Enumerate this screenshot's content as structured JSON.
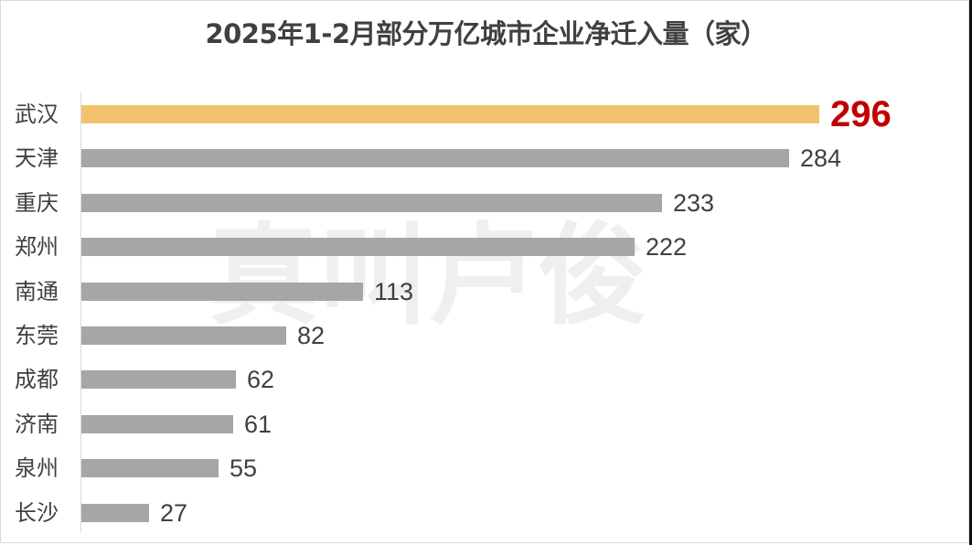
{
  "chart_data": {
    "type": "bar",
    "orientation": "horizontal",
    "title": "2025年1-2月部分万亿城市企业净迁入量（家）",
    "xlabel": "",
    "ylabel": "",
    "categories": [
      "武汉",
      "天津",
      "重庆",
      "郑州",
      "南通",
      "东莞",
      "成都",
      "济南",
      "泉州",
      "长沙"
    ],
    "values": [
      296,
      284,
      233,
      222,
      113,
      82,
      62,
      61,
      55,
      27
    ],
    "highlight_index": 0,
    "colors": {
      "highlight": "#f1c26d",
      "default": "#a6a6a6",
      "highlight_label": "#c00000",
      "label": "#404040"
    },
    "grid": false,
    "legend": null,
    "data_labels": true
  },
  "watermark": {
    "text": "真叫卢俊"
  },
  "rows": [
    {
      "label": "武汉",
      "value": "296"
    },
    {
      "label": "天津",
      "value": "284"
    },
    {
      "label": "重庆",
      "value": "233"
    },
    {
      "label": "郑州",
      "value": "222"
    },
    {
      "label": "南通",
      "value": "113"
    },
    {
      "label": "东莞",
      "value": "82"
    },
    {
      "label": "成都",
      "value": "62"
    },
    {
      "label": "济南",
      "value": "61"
    },
    {
      "label": "泉州",
      "value": "55"
    },
    {
      "label": "长沙",
      "value": "27"
    }
  ]
}
